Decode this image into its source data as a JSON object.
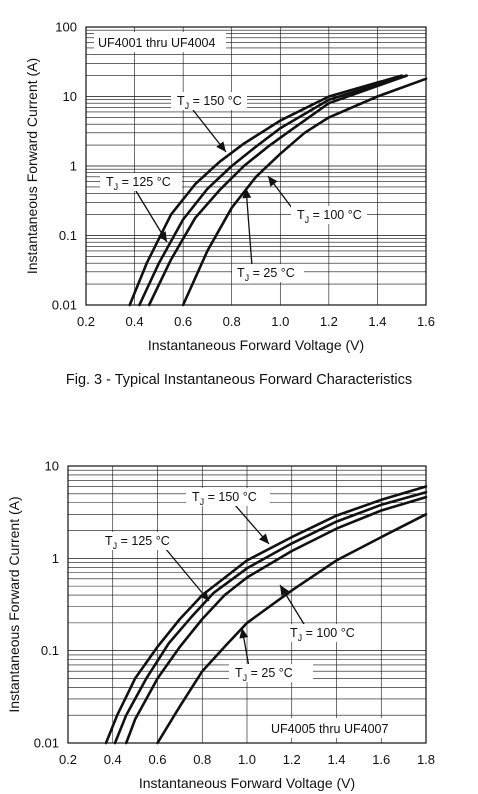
{
  "caption": "Fig. 3 - Typical Instantaneous Forward Characteristics",
  "chart_data": [
    {
      "type": "line",
      "title": "",
      "xlabel": "Instantaneous Forward Voltage (V)",
      "ylabel": "Instantaneous Forward Current (A)",
      "xlim": [
        0.2,
        1.6
      ],
      "ylim": [
        0.01,
        100
      ],
      "yscale": "log",
      "grid": true,
      "x_ticks": [
        "0.2",
        "0.4",
        "0.6",
        "0.8",
        "1.0",
        "1.2",
        "1.4",
        "1.6"
      ],
      "y_ticks": [
        "0.01",
        "0.1",
        "1",
        "10",
        "100"
      ],
      "annotation": "UF4001 thru UF4004",
      "series": [
        {
          "sub": "J",
          "name_main": "T",
          "name_rest": " = 150 °C",
          "x": [
            0.38,
            0.45,
            0.55,
            0.65,
            0.75,
            0.85,
            1.0,
            1.2,
            1.5
          ],
          "y": [
            0.01,
            0.04,
            0.2,
            0.55,
            1.15,
            2.1,
            4.5,
            10,
            20
          ]
        },
        {
          "sub": "J",
          "name_main": "T",
          "name_rest": " = 125 °C",
          "x": [
            0.42,
            0.5,
            0.6,
            0.7,
            0.8,
            0.9,
            1.0,
            1.2,
            1.52
          ],
          "y": [
            0.01,
            0.04,
            0.17,
            0.47,
            1.0,
            1.9,
            3.5,
            9,
            20
          ]
        },
        {
          "sub": "J",
          "name_main": "T",
          "name_rest": " = 100 °C",
          "x": [
            0.46,
            0.55,
            0.65,
            0.75,
            0.85,
            0.95,
            1.05,
            1.2,
            1.52
          ],
          "y": [
            0.01,
            0.045,
            0.18,
            0.45,
            1.0,
            1.9,
            3.4,
            8,
            20
          ]
        },
        {
          "sub": "J",
          "name_main": "T",
          "name_rest": " = 25 °C",
          "x": [
            0.6,
            0.7,
            0.8,
            0.9,
            1.0,
            1.1,
            1.2,
            1.4,
            1.6
          ],
          "y": [
            0.01,
            0.06,
            0.25,
            0.7,
            1.5,
            3.0,
            5.0,
            10,
            18
          ]
        }
      ]
    },
    {
      "type": "line",
      "title": "",
      "xlabel": "Instantaneous Forward Voltage (V)",
      "ylabel": "Instantaneous Forward Current (A)",
      "xlim": [
        0.2,
        1.8
      ],
      "ylim": [
        0.01,
        10
      ],
      "yscale": "log",
      "grid": true,
      "x_ticks": [
        "0.2",
        "0.4",
        "0.6",
        "0.8",
        "1.0",
        "1.2",
        "1.4",
        "1.6",
        "1.8"
      ],
      "y_ticks": [
        "0.01",
        "0.1",
        "1",
        "10"
      ],
      "annotation": "UF4005 thru UF4007",
      "series": [
        {
          "sub": "J",
          "name_main": "T",
          "name_rest": " = 150 °C",
          "x": [
            0.37,
            0.42,
            0.5,
            0.6,
            0.7,
            0.8,
            1.0,
            1.2,
            1.4,
            1.6,
            1.8
          ],
          "y": [
            0.01,
            0.02,
            0.05,
            0.11,
            0.22,
            0.4,
            0.95,
            1.7,
            2.9,
            4.3,
            6.0
          ]
        },
        {
          "sub": "J",
          "name_main": "T",
          "name_rest": " = 125 °C",
          "x": [
            0.41,
            0.46,
            0.55,
            0.65,
            0.75,
            0.85,
            1.0,
            1.2,
            1.4,
            1.6,
            1.8
          ],
          "y": [
            0.01,
            0.02,
            0.05,
            0.12,
            0.23,
            0.42,
            0.78,
            1.45,
            2.5,
            3.8,
            5.2
          ]
        },
        {
          "sub": "J",
          "name_main": "T",
          "name_rest": " = 100 °C",
          "x": [
            0.46,
            0.5,
            0.6,
            0.7,
            0.8,
            0.9,
            1.0,
            1.2,
            1.4,
            1.6,
            1.8
          ],
          "y": [
            0.01,
            0.018,
            0.05,
            0.11,
            0.22,
            0.4,
            0.62,
            1.2,
            2.1,
            3.3,
            4.6
          ]
        },
        {
          "sub": "J",
          "name_main": "T",
          "name_rest": " = 25 °C",
          "x": [
            0.6,
            0.7,
            0.8,
            0.9,
            1.0,
            1.2,
            1.4,
            1.6,
            1.8
          ],
          "y": [
            0.01,
            0.025,
            0.06,
            0.11,
            0.2,
            0.45,
            0.95,
            1.7,
            3.0
          ]
        }
      ]
    }
  ]
}
